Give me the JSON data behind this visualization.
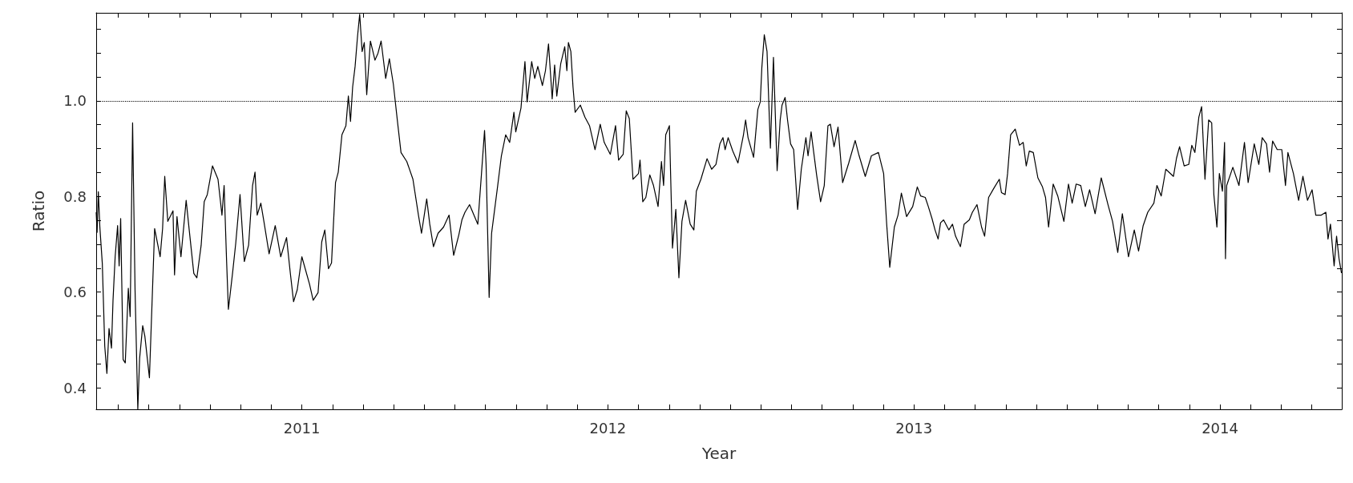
{
  "chart_data": {
    "type": "line",
    "xlabel": "Year",
    "ylabel": "Ratio",
    "xlim": [
      2010.328,
      2014.398
    ],
    "ylim": [
      0.355,
      1.184
    ],
    "xticks": [
      {
        "value": 2010.4,
        "label": null
      },
      {
        "value": 2010.5,
        "label": null
      },
      {
        "value": 2010.6,
        "label": null
      },
      {
        "value": 2010.7,
        "label": null
      },
      {
        "value": 2010.8,
        "label": null
      },
      {
        "value": 2010.9,
        "label": null
      },
      2011,
      {
        "value": 2011.1,
        "label": null
      },
      {
        "value": 2011.2,
        "label": null
      },
      {
        "value": 2011.3,
        "label": null
      },
      {
        "value": 2011.4,
        "label": null
      },
      {
        "value": 2011.5,
        "label": null
      },
      {
        "value": 2011.6,
        "label": null
      },
      {
        "value": 2011.7,
        "label": null
      },
      {
        "value": 2011.8,
        "label": null
      },
      {
        "value": 2011.9,
        "label": null
      },
      2012,
      {
        "value": 2012.1,
        "label": null
      },
      {
        "value": 2012.2,
        "label": null
      },
      {
        "value": 2012.3,
        "label": null
      },
      {
        "value": 2012.4,
        "label": null
      },
      {
        "value": 2012.5,
        "label": null
      },
      {
        "value": 2012.6,
        "label": null
      },
      {
        "value": 2012.7,
        "label": null
      },
      {
        "value": 2012.8,
        "label": null
      },
      {
        "value": 2012.9,
        "label": null
      },
      2013,
      {
        "value": 2013.1,
        "label": null
      },
      {
        "value": 2013.2,
        "label": null
      },
      {
        "value": 2013.3,
        "label": null
      },
      {
        "value": 2013.4,
        "label": null
      },
      {
        "value": 2013.5,
        "label": null
      },
      {
        "value": 2013.6,
        "label": null
      },
      {
        "value": 2013.7,
        "label": null
      },
      {
        "value": 2013.8,
        "label": null
      },
      {
        "value": 2013.9,
        "label": null
      },
      2014,
      {
        "value": 2014.1,
        "label": null
      },
      {
        "value": 2014.2,
        "label": null
      },
      {
        "value": 2014.3,
        "label": null
      }
    ],
    "yticks": [
      0.4,
      {
        "value": 0.45,
        "label": null
      },
      {
        "value": 0.5,
        "label": null
      },
      {
        "value": 0.55,
        "label": null
      },
      0.6,
      {
        "value": 0.65,
        "label": null
      },
      {
        "value": 0.7,
        "label": null
      },
      {
        "value": 0.75,
        "label": null
      },
      0.8,
      {
        "value": 0.85,
        "label": null
      },
      {
        "value": 0.9,
        "label": null
      },
      {
        "value": 0.95,
        "label": null
      },
      {
        "value": 1,
        "label": "1.0"
      },
      {
        "value": 1.05,
        "label": null
      },
      {
        "value": 1.1,
        "label": null
      },
      {
        "value": 1.15,
        "label": null
      }
    ],
    "grid": false,
    "marker": "none",
    "line_style": "solid",
    "ref_lines": [
      {
        "axis": "y",
        "value": 1,
        "line_style": "dotted",
        "color": "#000000"
      }
    ],
    "series": [
      {
        "color": "#000000",
        "x": [
          2010.328,
          2010.331,
          2010.335,
          2010.34,
          2010.348,
          2010.356,
          2010.363,
          2010.37,
          2010.378,
          2010.383,
          2010.39,
          2010.398,
          2010.403,
          2010.408,
          2010.416,
          2010.423,
          2010.433,
          2010.439,
          2010.447,
          2010.455,
          2010.464,
          2010.47,
          2010.48,
          2010.487,
          2010.502,
          2010.519,
          2010.537,
          2010.545,
          2010.552,
          2010.562,
          2010.579,
          2010.584,
          2010.592,
          2010.605,
          2010.622,
          2010.632,
          2010.647,
          2010.657,
          2010.671,
          2010.681,
          2010.691,
          2010.708,
          2010.726,
          2010.739,
          2010.746,
          2010.754,
          2010.76,
          2010.774,
          2010.784,
          2010.798,
          2010.812,
          2010.826,
          2010.839,
          2010.847,
          2010.854,
          2010.866,
          2010.876,
          2010.893,
          2010.913,
          2010.931,
          2010.95,
          2010.963,
          2010.973,
          2010.985,
          2011.0,
          2011.025,
          2011.037,
          2011.053,
          2011.065,
          2011.075,
          2011.087,
          2011.097,
          2011.11,
          2011.119,
          2011.131,
          2011.144,
          2011.152,
          2011.159,
          2011.166,
          2011.174,
          2011.182,
          2011.189,
          2011.197,
          2011.204,
          2011.212,
          2011.224,
          2011.239,
          2011.249,
          2011.259,
          2011.274,
          2011.286,
          2011.299,
          2011.314,
          2011.324,
          2011.343,
          2011.363,
          2011.381,
          2011.391,
          2011.408,
          2011.418,
          2011.43,
          2011.445,
          2011.463,
          2011.481,
          2011.496,
          2011.513,
          2011.523,
          2011.533,
          2011.548,
          2011.575,
          2011.587,
          2011.597,
          2011.602,
          2011.612,
          2011.62,
          2011.627,
          2011.64,
          2011.652,
          2011.666,
          2011.679,
          2011.693,
          2011.699,
          2011.716,
          2011.729,
          2011.736,
          2011.751,
          2011.761,
          2011.771,
          2011.786,
          2011.796,
          2011.806,
          2011.818,
          2011.826,
          2011.833,
          2011.846,
          2011.859,
          2011.866,
          2011.871,
          2011.879,
          2011.886,
          2011.893,
          2011.91,
          2011.925,
          2011.94,
          2011.958,
          2011.975,
          2011.988,
          2012.008,
          2012.025,
          2012.035,
          2012.05,
          2012.06,
          2012.07,
          2012.082,
          2012.1,
          2012.105,
          2012.114,
          2012.124,
          2012.137,
          2012.149,
          2012.164,
          2012.175,
          2012.182,
          2012.189,
          2012.201,
          2012.211,
          2012.222,
          2012.232,
          2012.242,
          2012.254,
          2012.269,
          2012.281,
          2012.289,
          2012.304,
          2012.324,
          2012.339,
          2012.353,
          2012.366,
          2012.376,
          2012.383,
          2012.393,
          2012.408,
          2012.425,
          2012.443,
          2012.45,
          2012.458,
          2012.476,
          2012.49,
          2012.498,
          2012.503,
          2012.511,
          2012.52,
          2012.531,
          2012.541,
          2012.553,
          2012.563,
          2012.569,
          2012.579,
          2012.587,
          2012.597,
          2012.607,
          2012.62,
          2012.632,
          2012.647,
          2012.654,
          2012.664,
          2012.682,
          2012.695,
          2012.707,
          2012.719,
          2012.727,
          2012.739,
          2012.752,
          2012.767,
          2012.787,
          2012.808,
          2012.821,
          2012.841,
          2012.861,
          2012.884,
          2012.901,
          2012.911,
          2012.921,
          2012.936,
          2012.948,
          2012.959,
          2012.976,
          2012.996,
          2013.011,
          2013.022,
          2013.037,
          2013.047,
          2013.059,
          2013.069,
          2013.079,
          2013.087,
          2013.097,
          2013.114,
          2013.126,
          2013.136,
          2013.152,
          2013.164,
          2013.181,
          2013.191,
          2013.206,
          2013.221,
          2013.231,
          2013.244,
          2013.261,
          2013.279,
          2013.286,
          2013.298,
          2013.306,
          2013.316,
          2013.331,
          2013.345,
          2013.357,
          2013.367,
          2013.377,
          2013.39,
          2013.405,
          2013.42,
          2013.43,
          2013.44,
          2013.455,
          2013.47,
          2013.49,
          2013.505,
          2013.517,
          2013.53,
          2013.545,
          2013.56,
          2013.574,
          2013.592,
          2013.612,
          2013.634,
          2013.649,
          2013.666,
          2013.681,
          2013.701,
          2013.72,
          2013.734,
          2013.749,
          2013.764,
          2013.784,
          2013.794,
          2013.808,
          2013.823,
          2013.848,
          2013.858,
          2013.868,
          2013.883,
          2013.898,
          2013.908,
          2013.918,
          2013.931,
          2013.94,
          2013.951,
          2013.963,
          2013.973,
          2013.98,
          2013.99,
          2013.998,
          2014.008,
          2014.015,
          2014.018,
          2014.022,
          2014.042,
          2014.062,
          2014.08,
          2014.092,
          2014.112,
          2014.127,
          2014.138,
          2014.152,
          2014.162,
          2014.172,
          2014.187,
          2014.202,
          2014.214,
          2014.222,
          2014.24,
          2014.257,
          2014.271,
          2014.286,
          2014.301,
          2014.313,
          2014.331,
          2014.346,
          2014.353,
          2014.361,
          2014.373,
          2014.381,
          2014.389,
          2014.397
        ],
        "values": [
          0.767,
          0.725,
          0.81,
          0.736,
          0.66,
          0.487,
          0.43,
          0.524,
          0.483,
          0.583,
          0.674,
          0.739,
          0.655,
          0.754,
          0.459,
          0.452,
          0.608,
          0.549,
          0.954,
          0.605,
          0.355,
          0.462,
          0.53,
          0.508,
          0.421,
          0.733,
          0.674,
          0.733,
          0.842,
          0.748,
          0.77,
          0.636,
          0.758,
          0.674,
          0.792,
          0.73,
          0.639,
          0.63,
          0.698,
          0.789,
          0.804,
          0.864,
          0.836,
          0.761,
          0.823,
          0.667,
          0.564,
          0.642,
          0.702,
          0.804,
          0.664,
          0.698,
          0.823,
          0.851,
          0.761,
          0.786,
          0.748,
          0.68,
          0.739,
          0.674,
          0.714,
          0.636,
          0.58,
          0.605,
          0.674,
          0.617,
          0.583,
          0.599,
          0.705,
          0.73,
          0.649,
          0.661,
          0.829,
          0.851,
          0.929,
          0.948,
          1.01,
          0.957,
          1.029,
          1.072,
          1.135,
          1.181,
          1.103,
          1.122,
          1.013,
          1.125,
          1.085,
          1.1,
          1.125,
          1.047,
          1.088,
          1.035,
          0.948,
          0.892,
          0.873,
          0.836,
          0.761,
          0.723,
          0.795,
          0.742,
          0.695,
          0.723,
          0.736,
          0.761,
          0.677,
          0.72,
          0.751,
          0.767,
          0.783,
          0.742,
          0.848,
          0.938,
          0.867,
          0.589,
          0.723,
          0.758,
          0.823,
          0.885,
          0.929,
          0.913,
          0.976,
          0.935,
          0.985,
          1.082,
          0.998,
          1.082,
          1.047,
          1.072,
          1.032,
          1.063,
          1.119,
          1.004,
          1.075,
          1.01,
          1.078,
          1.113,
          1.063,
          1.122,
          1.103,
          1.029,
          0.976,
          0.991,
          0.966,
          0.948,
          0.898,
          0.951,
          0.913,
          0.888,
          0.948,
          0.876,
          0.888,
          0.979,
          0.963,
          0.836,
          0.848,
          0.876,
          0.789,
          0.798,
          0.845,
          0.823,
          0.779,
          0.873,
          0.823,
          0.929,
          0.948,
          0.692,
          0.773,
          0.63,
          0.748,
          0.792,
          0.742,
          0.73,
          0.811,
          0.836,
          0.879,
          0.857,
          0.867,
          0.91,
          0.923,
          0.898,
          0.923,
          0.895,
          0.87,
          0.929,
          0.96,
          0.923,
          0.882,
          0.982,
          0.998,
          1.069,
          1.138,
          1.103,
          0.901,
          1.091,
          0.854,
          0.96,
          0.991,
          1.007,
          0.96,
          0.91,
          0.898,
          0.773,
          0.857,
          0.923,
          0.885,
          0.935,
          0.845,
          0.789,
          0.823,
          0.948,
          0.951,
          0.904,
          0.945,
          0.829,
          0.87,
          0.917,
          0.885,
          0.842,
          0.885,
          0.892,
          0.848,
          0.742,
          0.652,
          0.736,
          0.761,
          0.807,
          0.758,
          0.779,
          0.82,
          0.801,
          0.798,
          0.779,
          0.754,
          0.73,
          0.711,
          0.745,
          0.751,
          0.73,
          0.742,
          0.717,
          0.695,
          0.742,
          0.751,
          0.767,
          0.783,
          0.736,
          0.717,
          0.798,
          0.817,
          0.836,
          0.808,
          0.804,
          0.848,
          0.929,
          0.941,
          0.907,
          0.913,
          0.864,
          0.895,
          0.892,
          0.839,
          0.82,
          0.798,
          0.736,
          0.826,
          0.801,
          0.748,
          0.826,
          0.786,
          0.826,
          0.823,
          0.779,
          0.814,
          0.764,
          0.839,
          0.783,
          0.748,
          0.683,
          0.764,
          0.674,
          0.73,
          0.686,
          0.739,
          0.767,
          0.786,
          0.823,
          0.801,
          0.857,
          0.842,
          0.88,
          0.904,
          0.864,
          0.867,
          0.907,
          0.892,
          0.966,
          0.988,
          0.836,
          0.96,
          0.954,
          0.804,
          0.736,
          0.848,
          0.811,
          0.913,
          0.67,
          0.823,
          0.861,
          0.823,
          0.913,
          0.829,
          0.91,
          0.867,
          0.923,
          0.91,
          0.851,
          0.916,
          0.898,
          0.898,
          0.823,
          0.892,
          0.848,
          0.792,
          0.842,
          0.792,
          0.814,
          0.761,
          0.761,
          0.767,
          0.711,
          0.742,
          0.655,
          0.717,
          0.67,
          0.64
        ]
      }
    ]
  }
}
